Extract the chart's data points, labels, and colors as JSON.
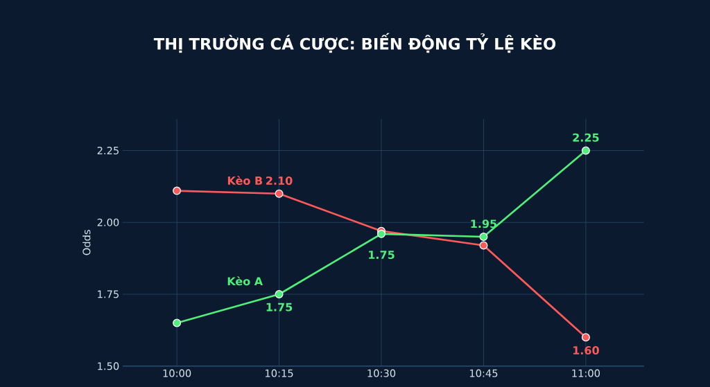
{
  "chart_data": {
    "type": "line",
    "title": "THỊ TRƯỜNG CÁ CƯỢC: BIẾN ĐỘNG TỶ LỆ KÈO",
    "ylabel": "Odds",
    "categories": [
      "10:00",
      "10:15",
      "10:30",
      "10:45",
      "11:00"
    ],
    "series": [
      {
        "name": "Kèo A",
        "color": "#4ef07a",
        "values": [
          1.65,
          1.75,
          1.96,
          1.95,
          2.25
        ],
        "value_labels": [
          null,
          "1.75",
          null,
          "1.95",
          "2.25"
        ]
      },
      {
        "name": "Kèo B",
        "color": "#ff5a5a",
        "values": [
          2.11,
          2.1,
          1.97,
          1.92,
          1.6
        ],
        "value_labels": [
          null,
          "2.10",
          null,
          null,
          "1.60"
        ]
      }
    ],
    "annotations": [
      "1.75"
    ],
    "ylim": [
      1.5,
      2.36
    ],
    "yticks": [
      {
        "value": 1.5,
        "label": "1.50"
      },
      {
        "value": 1.75,
        "label": "1.75"
      },
      {
        "value": 2.0,
        "label": "2.00"
      },
      {
        "value": 2.25,
        "label": "2.25"
      }
    ],
    "grid": true,
    "marker": "circle",
    "line_style": "solid"
  }
}
